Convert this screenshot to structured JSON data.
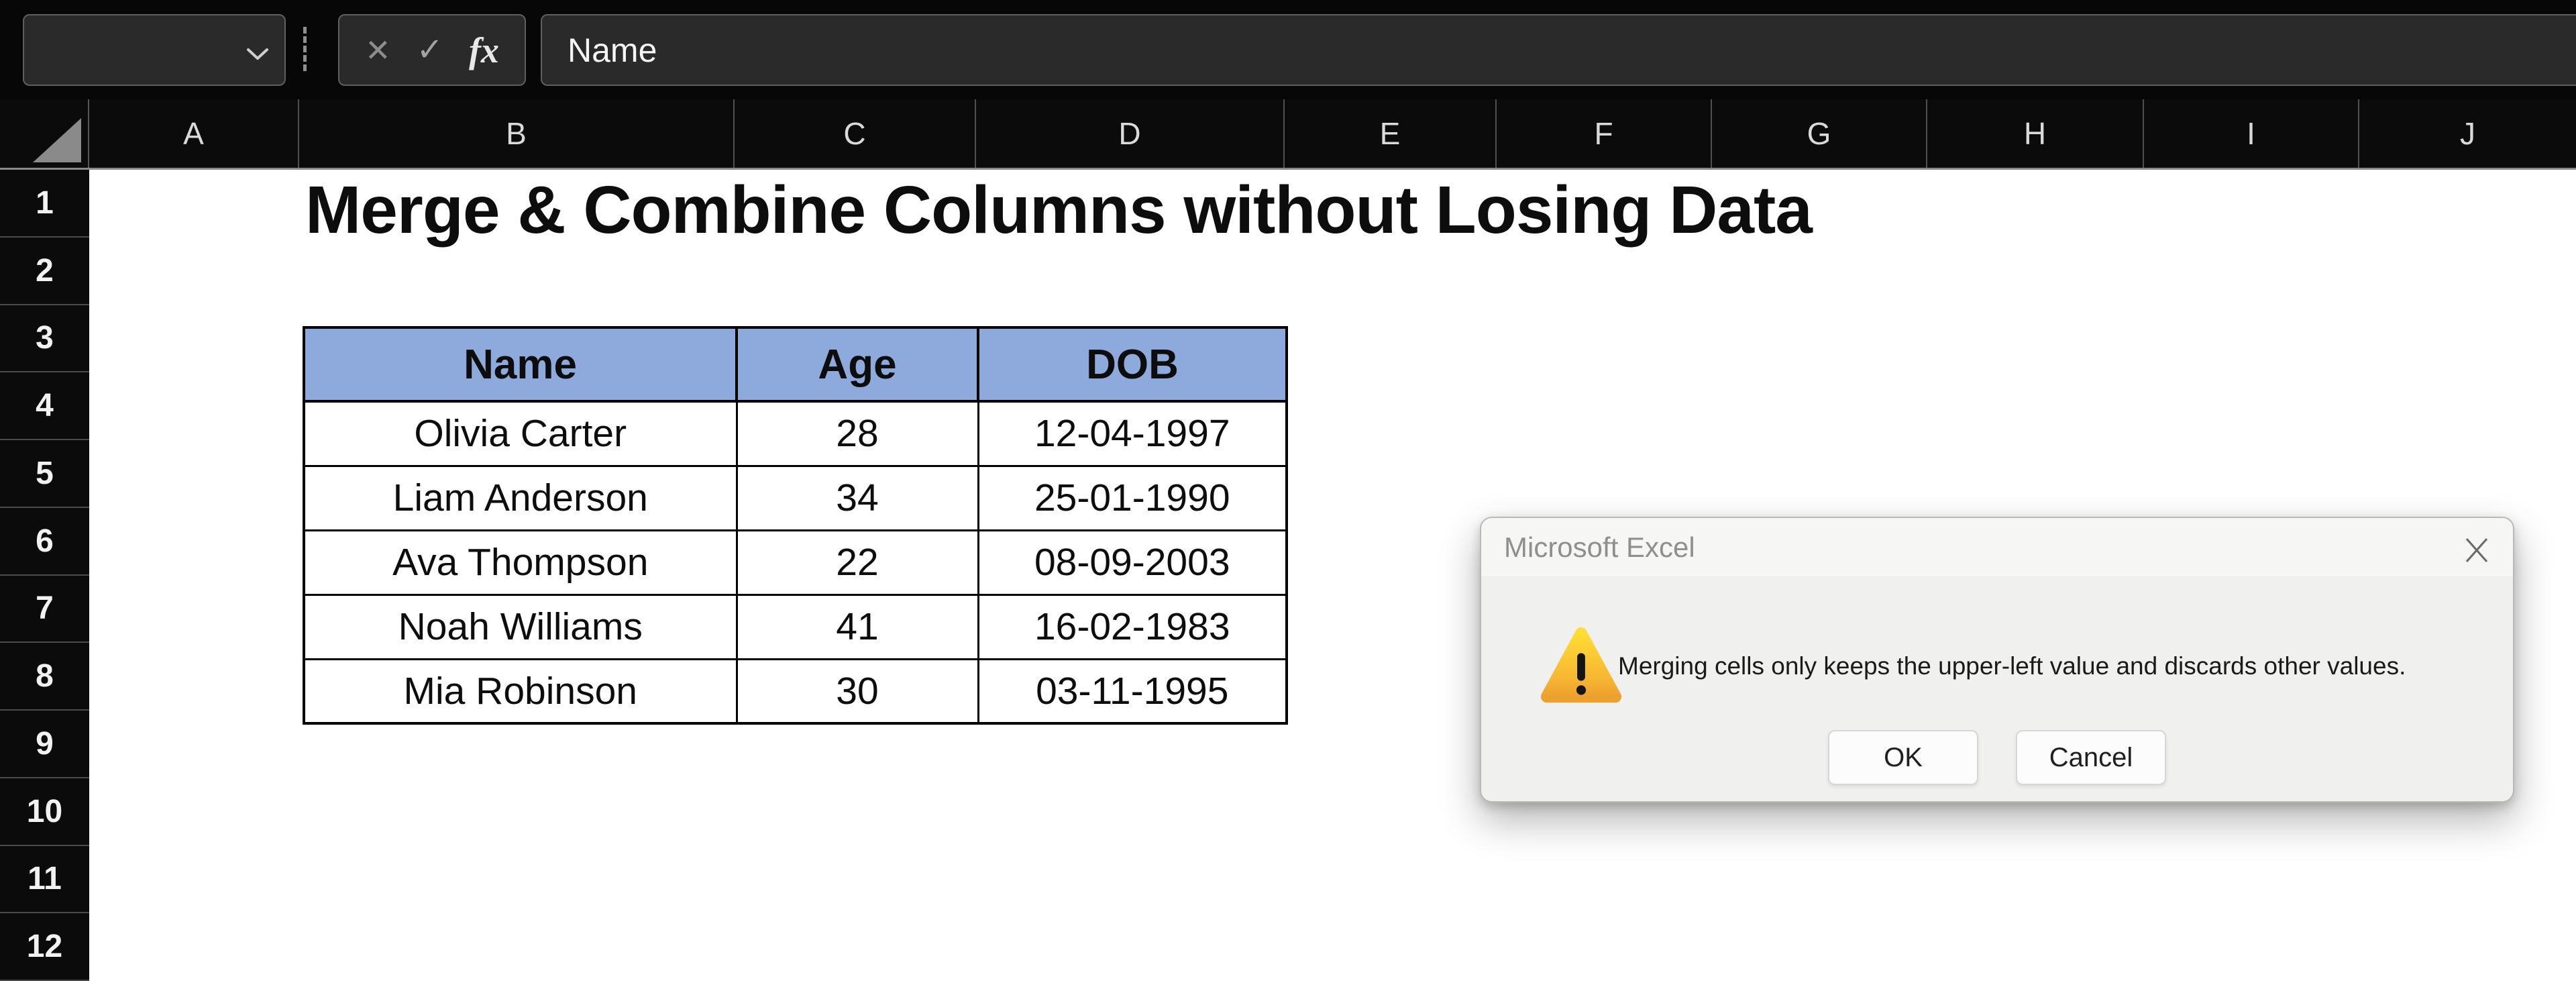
{
  "formula_bar": {
    "name_box": {
      "value": "",
      "chevron_icon": "chevron-down"
    },
    "cancel_label": "✕",
    "enter_label": "✓",
    "function_label": "fx",
    "input_value": "Name"
  },
  "grid": {
    "column_headers": [
      "A",
      "B",
      "C",
      "D",
      "E",
      "F",
      "G",
      "H",
      "I",
      "J"
    ],
    "row_headers": [
      "1",
      "2",
      "3",
      "4",
      "5",
      "6",
      "7",
      "8",
      "9",
      "10",
      "11",
      "12"
    ]
  },
  "sheet": {
    "title": "Merge & Combine Columns without Losing Data",
    "table": {
      "header_bg": "#8EA9DB",
      "columns": [
        "Name",
        "Age",
        "DOB"
      ],
      "rows": [
        [
          "Olivia Carter",
          "28",
          "12-04-1997"
        ],
        [
          "Liam Anderson",
          "34",
          "25-01-1990"
        ],
        [
          "Ava Thompson",
          "22",
          "08-09-2003"
        ],
        [
          "Noah Williams",
          "41",
          "16-02-1983"
        ],
        [
          "Mia Robinson",
          "30",
          "03-11-1995"
        ]
      ]
    }
  },
  "dialog": {
    "title": "Microsoft Excel",
    "close_icon": "close-x",
    "warning_icon": "warning-triangle",
    "warning_colors": {
      "top": "#FFDD35",
      "mid": "#F7B733",
      "bottom": "#EDA02E"
    },
    "message": "Merging cells only keeps the upper-left value and discards other values.",
    "ok_label": "OK",
    "cancel_label": "Cancel"
  }
}
